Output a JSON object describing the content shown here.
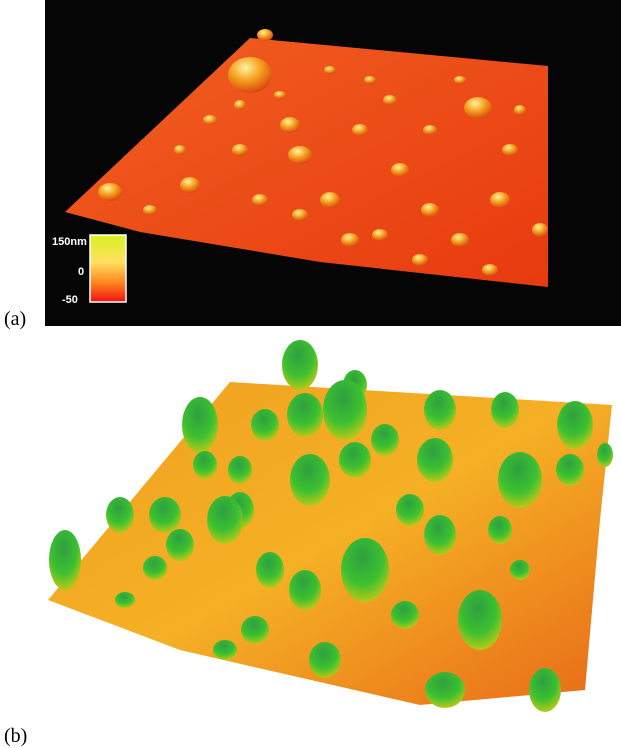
{
  "panels": [
    {
      "label": "(a)",
      "colorbar": {
        "labels": [
          "150nm",
          "0",
          "-50"
        ]
      }
    },
    {
      "label": "(b)"
    }
  ]
}
